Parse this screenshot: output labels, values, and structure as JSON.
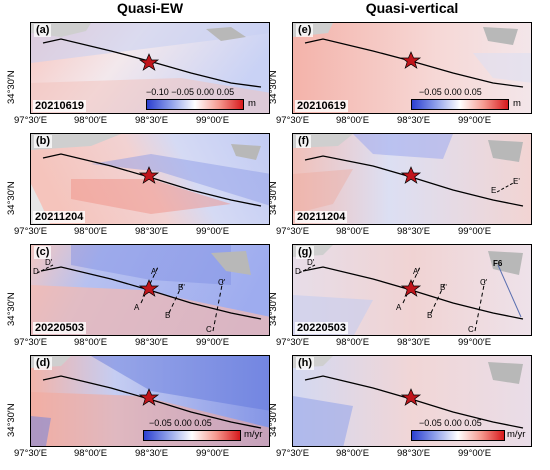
{
  "columns": {
    "left_title": "Quasi-EW",
    "right_title": "Quasi-vertical"
  },
  "axes": {
    "lat_label": "34°30′N",
    "lon_labels": [
      "97°30′E",
      "98°00′E",
      "98°30′E",
      "99°00′E"
    ]
  },
  "panels": [
    {
      "id": "a",
      "label": "(a)",
      "date": "20210619"
    },
    {
      "id": "b",
      "label": "(b)",
      "date": "20211204"
    },
    {
      "id": "c",
      "label": "(c)",
      "date": "20220503"
    },
    {
      "id": "d",
      "label": "(d)",
      "date": ""
    },
    {
      "id": "e",
      "label": "(e)",
      "date": "20210619"
    },
    {
      "id": "f",
      "label": "(f)",
      "date": "20211204"
    },
    {
      "id": "g",
      "label": "(g)",
      "date": "20220503"
    },
    {
      "id": "h",
      "label": "(h)",
      "date": ""
    }
  ],
  "colorbars": {
    "a": {
      "ticks": "−0.10 −0.05 0.00  0.05",
      "unit": "m"
    },
    "e": {
      "ticks": "−0.05    0.00    0.05",
      "unit": "m"
    },
    "d": {
      "ticks": "−0.05    0.00    0.05",
      "unit": "m/yr"
    },
    "h": {
      "ticks": "−0.05    0.00    0.05",
      "unit": "m/yr"
    }
  },
  "profile_labels": {
    "c": [
      "A",
      "A'",
      "B",
      "B'",
      "C",
      "C'",
      "D",
      "D'"
    ],
    "f": [
      "E",
      "E'"
    ],
    "g": [
      "A",
      "A'",
      "B",
      "B'",
      "C",
      "C'",
      "D",
      "D'",
      "F6"
    ]
  },
  "colors": {
    "red": "#d7191c",
    "blue": "#2b4fd0",
    "fault": "#000000",
    "star": "#c0151b"
  }
}
